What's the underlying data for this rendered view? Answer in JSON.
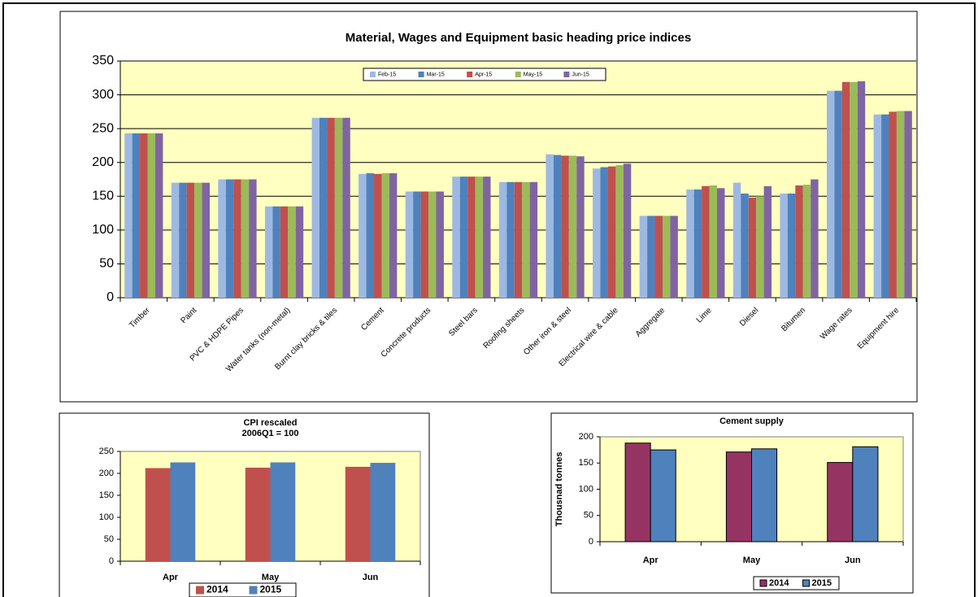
{
  "chart_data": [
    {
      "type": "bar",
      "title": "Material, Wages and Equipment basic heading price indices",
      "categories": [
        "Timber",
        "Paint",
        "PVC & HDPE Pipes",
        "Water tanks (non-metal)",
        "Burnt clay bricks & tiles",
        "Cement",
        "Concrete products",
        "Steel bars",
        "Roofing sheets",
        "Other iron & steel",
        "Electrical wire & cable",
        "Aggregate",
        "Lime",
        "Diesel",
        "Bitumen",
        "Wage rates",
        "Equipment hire"
      ],
      "series": [
        {
          "name": "Feb-15",
          "color": "#9db9e3",
          "values": [
            243,
            170,
            175,
            135,
            266,
            183,
            157,
            179,
            171,
            212,
            191,
            121,
            160,
            170,
            154,
            306,
            271
          ]
        },
        {
          "name": "Mar-15",
          "color": "#4f81bd",
          "values": [
            243,
            170,
            175,
            135,
            266,
            184,
            157,
            179,
            171,
            211,
            193,
            121,
            160,
            154,
            154,
            306,
            271
          ]
        },
        {
          "name": "Apr-15",
          "color": "#c0504d",
          "values": [
            243,
            170,
            175,
            135,
            266,
            183,
            157,
            179,
            171,
            210,
            194,
            121,
            165,
            148,
            166,
            319,
            275
          ]
        },
        {
          "name": "May-15",
          "color": "#9bbb59",
          "values": [
            243,
            170,
            175,
            135,
            266,
            184,
            157,
            179,
            171,
            210,
            196,
            121,
            166,
            150,
            167,
            319,
            276
          ]
        },
        {
          "name": "Jun-15",
          "color": "#8064a2",
          "values": [
            243,
            170,
            175,
            135,
            266,
            184,
            157,
            179,
            171,
            209,
            198,
            121,
            162,
            165,
            175,
            320,
            276
          ]
        }
      ],
      "ylim": [
        0,
        350
      ],
      "yticks": [
        0,
        50,
        100,
        150,
        200,
        250,
        300,
        350
      ],
      "legend": "top"
    },
    {
      "type": "bar",
      "title": "CPI rescaled",
      "subtitle": "2006Q1 = 100",
      "categories": [
        "Apr",
        "May",
        "Jun"
      ],
      "series": [
        {
          "name": "2014",
          "color": "#c0504d",
          "values": [
            212,
            213,
            215
          ]
        },
        {
          "name": "2015",
          "color": "#4f81bd",
          "values": [
            225,
            225,
            224
          ]
        }
      ],
      "ylim": [
        0,
        250
      ],
      "yticks": [
        0,
        50,
        100,
        150,
        200,
        250
      ],
      "legend": "bottom"
    },
    {
      "type": "bar",
      "title": "Cement supply",
      "ylabel": "Thousnad tonnes",
      "categories": [
        "Apr",
        "May",
        "Jun"
      ],
      "series": [
        {
          "name": "2014",
          "color": "#953462",
          "values": [
            188,
            171,
            151
          ]
        },
        {
          "name": "2015",
          "color": "#4f81bd",
          "values": [
            175,
            177,
            181
          ]
        }
      ],
      "ylim": [
        0,
        200
      ],
      "yticks": [
        0,
        50,
        100,
        150,
        200
      ],
      "legend": "bottom"
    }
  ]
}
